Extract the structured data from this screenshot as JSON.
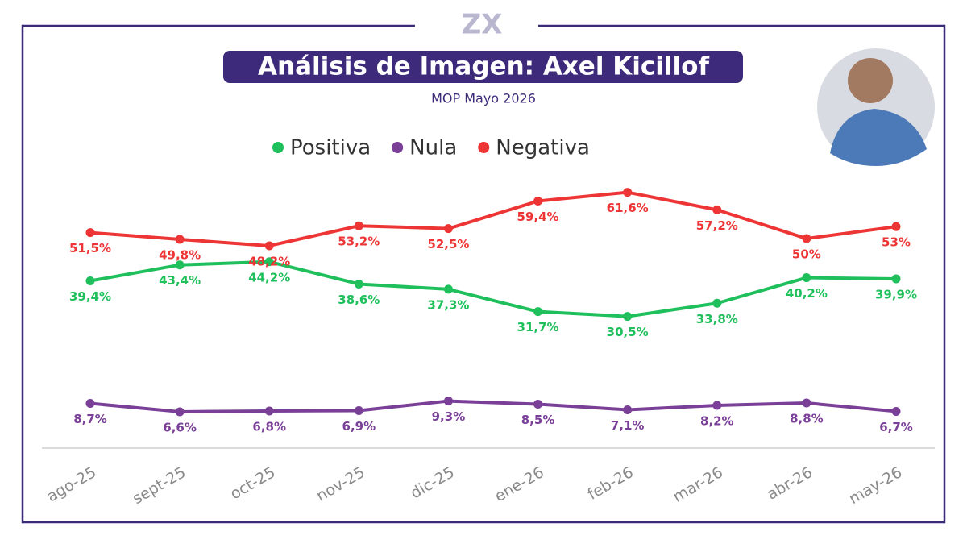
{
  "logo": "ZX",
  "chart_data": {
    "type": "line",
    "title": "Análisis de Imagen: Axel Kicillof",
    "subtitle": "MOP Mayo 2026",
    "categories": [
      "ago-25",
      "sept-25",
      "oct-25",
      "nov-25",
      "dic-25",
      "ene-26",
      "feb-26",
      "mar-26",
      "abr-26",
      "may-26"
    ],
    "series": [
      {
        "name": "Positiva",
        "color": "#1fbf5c",
        "values": [
          39.4,
          43.4,
          44.2,
          38.6,
          37.3,
          31.7,
          30.5,
          33.8,
          40.2,
          39.9
        ],
        "value_labels": [
          "39,4%",
          "43,4%",
          "44,2%",
          "38,6%",
          "37,3%",
          "31,7%",
          "30,5%",
          "33,8%",
          "40,2%",
          "39,9%"
        ]
      },
      {
        "name": "Nula",
        "color": "#7a3f97",
        "values": [
          8.7,
          6.6,
          6.8,
          6.9,
          9.3,
          8.5,
          7.1,
          8.2,
          8.8,
          6.7
        ],
        "value_labels": [
          "8,7%",
          "6,6%",
          "6,8%",
          "6,9%",
          "9,3%",
          "8,5%",
          "7,1%",
          "8,2%",
          "8,8%",
          "6,7%"
        ]
      },
      {
        "name": "Negativa",
        "color": "#ee3535",
        "values": [
          51.5,
          49.8,
          48.2,
          53.2,
          52.5,
          59.4,
          61.6,
          57.2,
          50,
          53
        ],
        "value_labels": [
          "51,5%",
          "49,8%",
          "48,2%",
          "53,2%",
          "52,5%",
          "59,4%",
          "61,6%",
          "57,2%",
          "50%",
          "53%"
        ]
      }
    ],
    "ylim": [
      -2.5,
      70
    ],
    "grid": false,
    "legend": "top"
  }
}
